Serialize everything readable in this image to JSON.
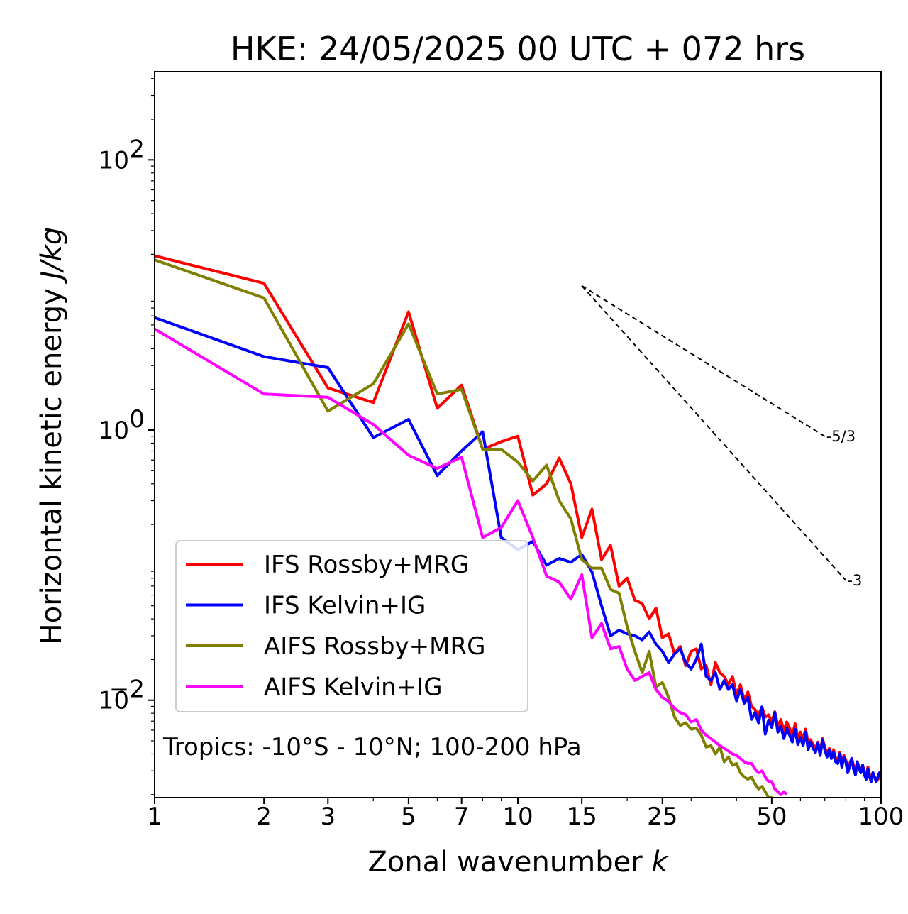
{
  "chart_data": {
    "type": "line",
    "title": "HKE: 24/05/2025 00 UTC + 072 hrs",
    "xlabel_main": "Zonal wavenumber ",
    "xlabel_var": "k",
    "ylabel_main": "Horizontal kinetic energy ",
    "ylabel_unit": "J/kg",
    "xscale": "log",
    "yscale": "log",
    "xlim": [
      1,
      100
    ],
    "ylim": [
      0.0019,
      450
    ],
    "x_ticks": [
      {
        "value": 1,
        "label": "1"
      },
      {
        "value": 2,
        "label": "2"
      },
      {
        "value": 3,
        "label": "3"
      },
      {
        "value": 5,
        "label": "5"
      },
      {
        "value": 7,
        "label": "7"
      },
      {
        "value": 10,
        "label": "10"
      },
      {
        "value": 15,
        "label": "15"
      },
      {
        "value": 25,
        "label": "25"
      },
      {
        "value": 50,
        "label": "50"
      },
      {
        "value": 100,
        "label": "100"
      }
    ],
    "y_ticks": [
      {
        "value": 0.01,
        "base": "10",
        "exp": "−2"
      },
      {
        "value": 1,
        "base": "10",
        "exp": "0"
      },
      {
        "value": 100,
        "base": "10",
        "exp": "2"
      }
    ],
    "legend_position": "lower-left",
    "annotation": "Tropics: -10°S - 10°N; 100-200 hPa",
    "reference_slopes": [
      {
        "label": "-5/3",
        "slope": -1.6667,
        "x0": 15,
        "y0": 11.7,
        "x1": 70
      },
      {
        "label": "-3",
        "slope": -3,
        "x0": 15,
        "y0": 11.7,
        "x1": 80
      }
    ],
    "series": [
      {
        "name": "IFS Rossby+MRG",
        "color": "#ff0000",
        "x": [
          1,
          2,
          3,
          4,
          5,
          6,
          7,
          8,
          9,
          10,
          11,
          12,
          13,
          14,
          15,
          16,
          17,
          18,
          19,
          20,
          21,
          22,
          23,
          24,
          25,
          26,
          27,
          28,
          29,
          30,
          31,
          32,
          33,
          34,
          35,
          36,
          37,
          38,
          39,
          40,
          41,
          42,
          43,
          44,
          45,
          46,
          47,
          48,
          49,
          50,
          51,
          52,
          53,
          54,
          55,
          56,
          57,
          58,
          59,
          60,
          61,
          62,
          63,
          64,
          65,
          66,
          67,
          68,
          69,
          70,
          71,
          72,
          73,
          74,
          75,
          76,
          77,
          78,
          79,
          80,
          81,
          82,
          83,
          84,
          85,
          86,
          87,
          88,
          89,
          90,
          91,
          92,
          93,
          94,
          95,
          96,
          97,
          98,
          99,
          100
        ],
        "y": [
          19.5,
          12.2,
          2.05,
          1.6,
          7.5,
          1.45,
          2.15,
          0.72,
          0.82,
          0.9,
          0.33,
          0.4,
          0.62,
          0.4,
          0.16,
          0.26,
          0.11,
          0.14,
          0.07,
          0.08,
          0.055,
          0.052,
          0.04,
          0.048,
          0.029,
          0.031,
          0.022,
          0.025,
          0.018,
          0.023,
          0.024,
          0.017,
          0.018,
          0.013,
          0.019,
          0.016,
          0.015,
          0.013,
          0.015,
          0.011,
          0.013,
          0.01,
          0.0115,
          0.009,
          0.0085,
          0.0078,
          0.0089,
          0.0075,
          0.0078,
          0.0069,
          0.0082,
          0.0064,
          0.0072,
          0.0059,
          0.0069,
          0.0062,
          0.0055,
          0.0067,
          0.0053,
          0.0058,
          0.0052,
          0.0061,
          0.0048,
          0.0051,
          0.0047,
          0.0044,
          0.0049,
          0.0041,
          0.0052,
          0.0045,
          0.004,
          0.0044,
          0.0039,
          0.0043,
          0.0037,
          0.0036,
          0.0041,
          0.0035,
          0.0039,
          0.0036,
          0.0031,
          0.0034,
          0.0037,
          0.0033,
          0.003,
          0.0035,
          0.0032,
          0.003,
          0.0033,
          0.0029,
          0.0027,
          0.0032,
          0.0028,
          0.0026,
          0.0029,
          0.0027,
          0.0025,
          0.0026,
          0.0027,
          0.0026
        ]
      },
      {
        "name": "IFS Kelvin+IG",
        "color": "#0000ff",
        "x": [
          1,
          2,
          3,
          4,
          5,
          6,
          7,
          8,
          9,
          10,
          11,
          12,
          13,
          14,
          15,
          16,
          17,
          18,
          19,
          20,
          21,
          22,
          23,
          24,
          25,
          26,
          27,
          28,
          29,
          30,
          31,
          32,
          33,
          34,
          35,
          36,
          37,
          38,
          39,
          40,
          41,
          42,
          43,
          44,
          45,
          46,
          47,
          48,
          49,
          50,
          51,
          52,
          53,
          54,
          55,
          56,
          57,
          58,
          59,
          60,
          61,
          62,
          63,
          64,
          65,
          66,
          67,
          68,
          69,
          70,
          71,
          72,
          73,
          74,
          75,
          76,
          77,
          78,
          79,
          80,
          81,
          82,
          83,
          84,
          85,
          86,
          87,
          88,
          89,
          90,
          91,
          92,
          93,
          94,
          95,
          96,
          97,
          98,
          99,
          100
        ],
        "y": [
          6.8,
          3.5,
          2.9,
          0.88,
          1.2,
          0.46,
          0.7,
          0.97,
          0.16,
          0.13,
          0.15,
          0.1,
          0.112,
          0.105,
          0.12,
          0.089,
          0.05,
          0.03,
          0.033,
          0.031,
          0.03,
          0.028,
          0.032,
          0.026,
          0.023,
          0.019,
          0.022,
          0.024,
          0.019,
          0.017,
          0.02,
          0.026,
          0.015,
          0.014,
          0.016,
          0.012,
          0.014,
          0.012,
          0.013,
          0.0099,
          0.012,
          0.0095,
          0.0105,
          0.0072,
          0.0081,
          0.0068,
          0.0089,
          0.0056,
          0.0071,
          0.0063,
          0.0081,
          0.0058,
          0.0064,
          0.0052,
          0.0062,
          0.0055,
          0.0049,
          0.0061,
          0.0047,
          0.0053,
          0.0046,
          0.0058,
          0.0043,
          0.0049,
          0.0044,
          0.0041,
          0.0048,
          0.0039,
          0.0051,
          0.0043,
          0.0038,
          0.0043,
          0.0037,
          0.0041,
          0.0035,
          0.0034,
          0.004,
          0.0032,
          0.0038,
          0.0035,
          0.0029,
          0.0033,
          0.0037,
          0.0031,
          0.0028,
          0.0035,
          0.0031,
          0.0029,
          0.0033,
          0.0028,
          0.0026,
          0.0031,
          0.0027,
          0.0025,
          0.0029,
          0.0027,
          0.0025,
          0.0027,
          0.0029,
          0.0027
        ]
      },
      {
        "name": "AIFS Rossby+MRG",
        "color": "#808000",
        "x": [
          1,
          2,
          3,
          4,
          5,
          6,
          7,
          8,
          9,
          10,
          11,
          12,
          13,
          14,
          15,
          16,
          17,
          18,
          19,
          20,
          21,
          22,
          23,
          24,
          25,
          26,
          27,
          28,
          29,
          30,
          31,
          32,
          33,
          34,
          35,
          36,
          37,
          38,
          39,
          40,
          41,
          42,
          43,
          44,
          45,
          46,
          47,
          48,
          49,
          50,
          51,
          52,
          53
        ],
        "y": [
          18.2,
          9.5,
          1.38,
          2.2,
          6.1,
          1.85,
          2.0,
          0.72,
          0.72,
          0.58,
          0.42,
          0.55,
          0.3,
          0.22,
          0.11,
          0.095,
          0.095,
          0.066,
          0.062,
          0.035,
          0.023,
          0.016,
          0.023,
          0.0125,
          0.0135,
          0.0105,
          0.0075,
          0.0065,
          0.0068,
          0.0061,
          0.0062,
          0.0055,
          0.0045,
          0.0046,
          0.004,
          0.0045,
          0.0035,
          0.0038,
          0.0033,
          0.0034,
          0.0029,
          0.0027,
          0.0026,
          0.0027,
          0.0024,
          0.0022,
          0.0023,
          0.0021,
          0.0019,
          0.0019,
          0.0018,
          0.0017,
          0.0019
        ]
      },
      {
        "name": "AIFS Kelvin+IG",
        "color": "#ff00ff",
        "x": [
          1,
          2,
          3,
          4,
          5,
          6,
          7,
          8,
          9,
          10,
          11,
          12,
          13,
          14,
          15,
          16,
          17,
          18,
          19,
          20,
          21,
          22,
          23,
          24,
          25,
          26,
          27,
          28,
          29,
          30,
          31,
          32,
          33,
          34,
          35,
          36,
          37,
          38,
          39,
          40,
          41,
          42,
          43,
          44,
          45,
          46,
          47,
          48,
          49,
          50,
          51,
          52,
          53,
          54,
          55
        ],
        "y": [
          5.6,
          1.85,
          1.75,
          1.1,
          0.65,
          0.52,
          0.63,
          0.16,
          0.19,
          0.3,
          0.16,
          0.083,
          0.075,
          0.056,
          0.085,
          0.029,
          0.037,
          0.024,
          0.025,
          0.017,
          0.014,
          0.015,
          0.016,
          0.012,
          0.0105,
          0.0098,
          0.0087,
          0.0081,
          0.0078,
          0.0069,
          0.0072,
          0.006,
          0.0055,
          0.0052,
          0.0049,
          0.0046,
          0.0044,
          0.0042,
          0.004,
          0.0039,
          0.0037,
          0.0035,
          0.0034,
          0.0034,
          0.0031,
          0.0029,
          0.003,
          0.0027,
          0.0025,
          0.0025,
          0.0022,
          0.0021,
          0.002,
          0.0021,
          0.002
        ]
      }
    ]
  }
}
